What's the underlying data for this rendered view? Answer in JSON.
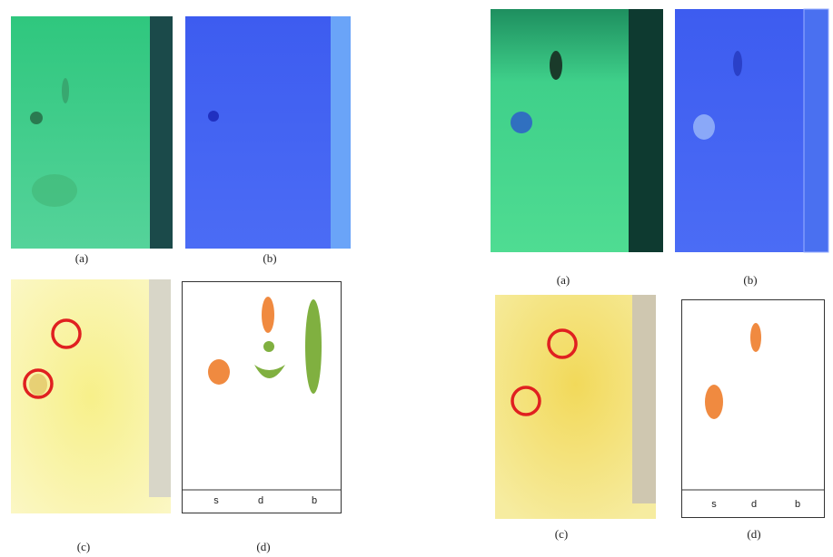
{
  "figures": [
    {
      "panels": [
        {
          "label": "(a)"
        },
        {
          "label": "(b)"
        },
        {
          "label": "(c)"
        },
        {
          "label": "(d)"
        }
      ],
      "lanes": [
        "s",
        "d",
        "b"
      ]
    },
    {
      "panels": [
        {
          "label": "(a)"
        },
        {
          "label": "(b)"
        },
        {
          "label": "(c)"
        },
        {
          "label": "(d)"
        }
      ],
      "lanes": [
        "s",
        "d",
        "b"
      ]
    }
  ]
}
